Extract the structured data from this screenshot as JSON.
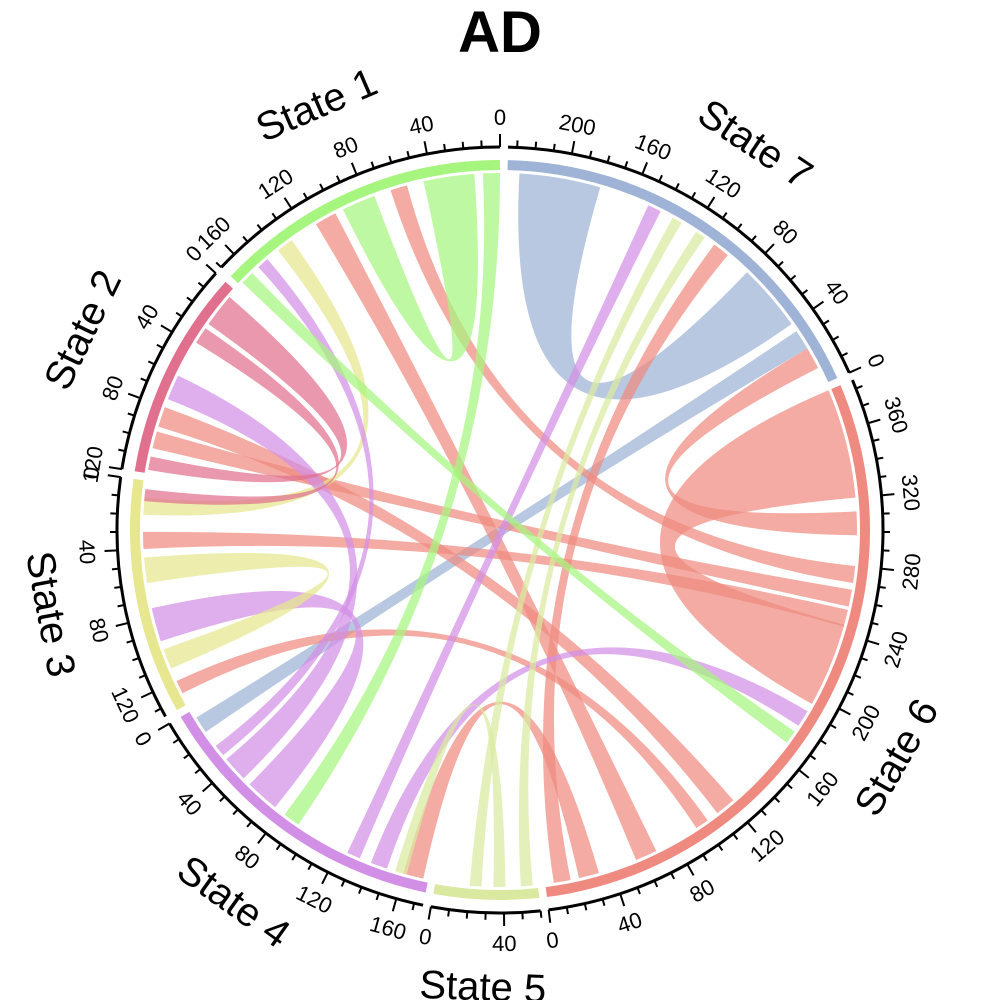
{
  "chart_data": {
    "type": "chord",
    "title": "AD",
    "tick_step_major": 40,
    "tick_step_minor": 10,
    "sectors": [
      {
        "name": "State 1",
        "length": 170,
        "color": "#a6f57e"
      },
      {
        "name": "State 2",
        "length": 120,
        "color": "#e0708e"
      },
      {
        "name": "State 3",
        "length": 135,
        "color": "#e6e78e"
      },
      {
        "name": "State 4",
        "length": 175,
        "color": "#d28fe6"
      },
      {
        "name": "State 5",
        "length": 60,
        "color": "#d9eaa0"
      },
      {
        "name": "State 6",
        "length": 385,
        "color": "#ee8a80"
      },
      {
        "name": "State 7",
        "length": 235,
        "color": "#9eb3d6"
      }
    ],
    "links": [
      {
        "from": "State 6",
        "to": "State 6",
        "from_pos": [
          195,
          245
        ],
        "to_pos": [
          320,
          385
        ],
        "value": 50
      },
      {
        "from": "State 6",
        "to": "State 7",
        "from_pos": [
          298,
          312
        ],
        "to_pos": [
          10,
          23
        ],
        "value": 13
      },
      {
        "from": "State 7",
        "to": "State 4",
        "from_pos": [
          23,
          35
        ],
        "to_pos": [
          5,
          15
        ],
        "value": 12
      },
      {
        "from": "State 7",
        "to": "State 7",
        "from_pos": [
          40,
          80
        ],
        "to_pos": [
          180,
          228
        ],
        "value": 44
      },
      {
        "from": "State 6",
        "to": "State 7",
        "from_pos": [
          5,
          15
        ],
        "to_pos": [
          95,
          105
        ],
        "value": 10
      },
      {
        "from": "State 6",
        "to": "State 1",
        "from_pos": [
          55,
          68
        ],
        "to_pos": [
          100,
          113
        ],
        "value": 12
      },
      {
        "from": "State 6",
        "to": "State 4",
        "from_pos": [
          20,
          32
        ],
        "to_pos": [
          160,
          172
        ],
        "value": 12
      },
      {
        "from": "State 6",
        "to": "State 2",
        "from_pos": [
          110,
          122
        ],
        "to_pos": [
          80,
          92
        ],
        "value": 12
      },
      {
        "from": "State 6",
        "to": "State 3",
        "from_pos": [
          95,
          103
        ],
        "to_pos": [
          120,
          128
        ],
        "value": 8
      },
      {
        "from": "State 6",
        "to": "State 2",
        "from_pos": [
          256,
          266
        ],
        "to_pos": [
          95,
          105
        ],
        "value": 10
      },
      {
        "from": "State 6",
        "to": "State 1",
        "from_pos": [
          270,
          280
        ],
        "to_pos": [
          55,
          65
        ],
        "value": 10
      },
      {
        "from": "State 6",
        "to": "State 3",
        "from_pos": [
          244,
          254
        ],
        "to_pos": [
          30,
          40
        ],
        "value": 10
      },
      {
        "from": "State 4",
        "to": "State 6",
        "from_pos": [
          140,
          150
        ],
        "to_pos": [
          180,
          190
        ],
        "value": 10
      },
      {
        "from": "State 5",
        "to": "State 7",
        "from_pos": [
          50,
          57
        ],
        "to_pos": [
          112,
          118
        ],
        "value": 7
      },
      {
        "from": "State 5",
        "to": "State 7",
        "from_pos": [
          20,
          27
        ],
        "to_pos": [
          128,
          134
        ],
        "value": 7
      },
      {
        "from": "State 5",
        "to": "State 4",
        "from_pos": [
          34,
          41
        ],
        "to_pos": [
          155,
          162
        ],
        "value": 7
      },
      {
        "from": "State 3",
        "to": "State 1",
        "from_pos": [
          10,
          20
        ],
        "to_pos": [
          130,
          140
        ],
        "value": 10
      },
      {
        "from": "State 4",
        "to": "State 1",
        "from_pos": [
          25,
          32
        ],
        "to_pos": [
          148,
          155
        ],
        "value": 7
      },
      {
        "from": "State 4",
        "to": "State 2",
        "from_pos": [
          35,
          50
        ],
        "to_pos": [
          60,
          75
        ],
        "value": 15
      },
      {
        "from": "State 4",
        "to": "State 3",
        "from_pos": [
          55,
          75
        ],
        "to_pos": [
          75,
          95
        ],
        "value": 20
      },
      {
        "from": "State 4",
        "to": "State 7",
        "from_pos": [
          125,
          133
        ],
        "to_pos": [
          142,
          150
        ],
        "value": 8
      },
      {
        "from": "State 3",
        "to": "State 3",
        "from_pos": [
          45,
          60
        ],
        "to_pos": [
          100,
          112
        ],
        "value": 13
      },
      {
        "from": "State 2",
        "to": "State 2",
        "from_pos": [
          5,
          25
        ],
        "to_pos": [
          110,
          118
        ],
        "value": 14
      },
      {
        "from": "State 1",
        "to": "State 1",
        "from_pos": [
          15,
          45
        ],
        "to_pos": [
          75,
          95
        ],
        "value": 25
      },
      {
        "from": "State 1",
        "to": "State 4",
        "from_pos": [
          0,
          10
        ],
        "to_pos": [
          82,
          92
        ],
        "value": 10
      },
      {
        "from": "State 2",
        "to": "State 3",
        "from_pos": [
          28,
          38
        ],
        "to_pos": [
          5,
          12
        ],
        "value": 8
      },
      {
        "from": "State 1",
        "to": "State 6",
        "from_pos": [
          160,
          168
        ],
        "to_pos": [
          168,
          176
        ],
        "value": 8
      }
    ]
  }
}
